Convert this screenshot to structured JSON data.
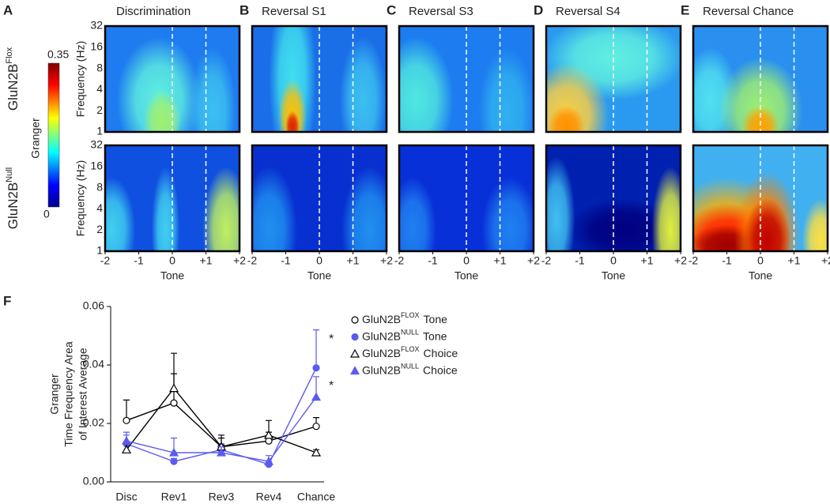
{
  "chart_data": [
    {
      "type": "heatmap",
      "panels": [
        {
          "letter": "A",
          "title": "Discrimination"
        },
        {
          "letter": "B",
          "title": "Reversal S1"
        },
        {
          "letter": "C",
          "title": "Reversal S3"
        },
        {
          "letter": "D",
          "title": "Reversal S4"
        },
        {
          "letter": "E",
          "title": "Reversal Chance"
        }
      ],
      "rows": [
        {
          "label": "GluN2B",
          "sup": "Flox"
        },
        {
          "label": "GluN2B",
          "sup": "Null"
        }
      ],
      "xlabel": "Tone",
      "ylabel": "Frequency (Hz)",
      "xlim": [
        -2,
        2
      ],
      "xticks": [
        -2,
        -1,
        0,
        {
          "value": 1,
          "label": "+1"
        },
        {
          "value": 2,
          "label": "+2"
        }
      ],
      "ylim": [
        1,
        32
      ],
      "yticks": [
        1,
        2,
        4,
        8,
        16,
        32
      ],
      "log_y": true,
      "colorbar": {
        "label": "Granger",
        "lim": [
          0,
          0.35
        ],
        "ticks": [
          0,
          0.35
        ]
      }
    },
    {
      "type": "line",
      "letter": "F",
      "ylabel": [
        "Granger",
        "Time Frequency Area",
        "of Interest Average"
      ],
      "categories": [
        "Disc",
        "Rev1",
        "Rev3",
        "Rev4",
        "Chance"
      ],
      "ylim": [
        0,
        0.06
      ],
      "yticks": [
        {
          "value": 0,
          "label": "0.00"
        },
        0.02,
        0.04,
        0.06
      ],
      "series": [
        {
          "name": "GluN2B",
          "name_sup": "FLOX",
          "name_suffix": "Tone",
          "color": "#000000",
          "marker": "open-circle",
          "values": [
            0.021,
            0.027,
            0.012,
            0.014,
            0.019
          ],
          "errors": [
            0.007,
            0.01,
            0.003,
            0.003,
            0.003
          ]
        },
        {
          "name": "GluN2B",
          "name_sup": "NULL",
          "name_suffix": "Tone",
          "color": "#5b5bf0",
          "marker": "filled-circle",
          "values": [
            0.013,
            0.007,
            0.011,
            0.006,
            0.039
          ],
          "errors": [
            0.003,
            0.001,
            0.002,
            0.001,
            0.013
          ],
          "annotation": "*"
        },
        {
          "name": "GluN2B",
          "name_sup": "FLOX",
          "name_suffix": "Choice",
          "color": "#000000",
          "marker": "open-triangle",
          "values": [
            0.011,
            0.032,
            0.012,
            0.016,
            0.01
          ],
          "errors": [
            0.002,
            0.012,
            0.004,
            0.005,
            0.001
          ]
        },
        {
          "name": "GluN2B",
          "name_sup": "NULL",
          "name_suffix": "Choice",
          "color": "#5b5bf0",
          "marker": "filled-triangle",
          "values": [
            0.014,
            0.01,
            0.01,
            0.007,
            0.029
          ],
          "errors": [
            0.003,
            0.005,
            0.002,
            0.002,
            0.007
          ],
          "annotation": "*"
        }
      ]
    }
  ]
}
